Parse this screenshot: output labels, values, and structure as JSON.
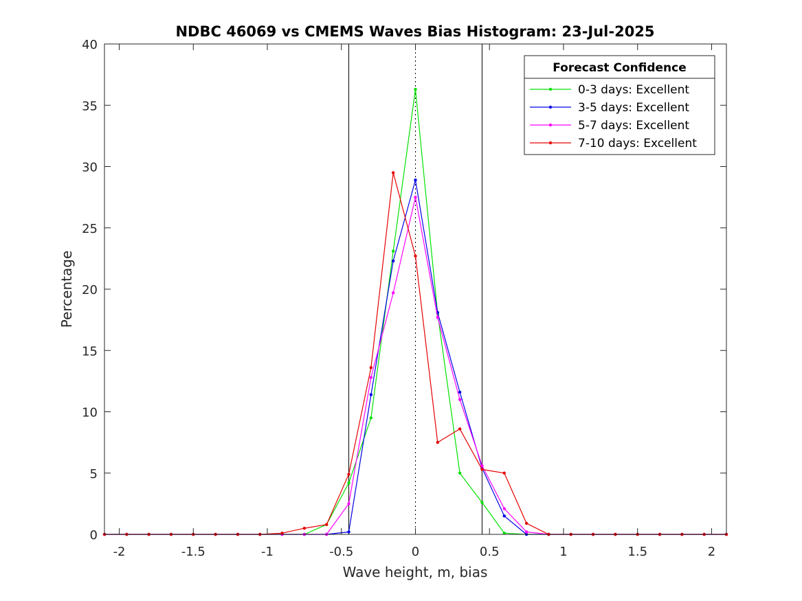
{
  "chart_data": {
    "type": "line",
    "title": "NDBC 46069 vs CMEMS Waves Bias Histogram: 23-Jul-2025",
    "xlabel": "Wave height, m, bias",
    "ylabel": "Percentage",
    "xlim": [
      -2.1,
      2.1
    ],
    "ylim": [
      0,
      40
    ],
    "xticks": [
      -2,
      -1.5,
      -1,
      -0.5,
      0,
      0.5,
      1,
      1.5,
      2
    ],
    "xtick_labels": [
      "-2",
      "-1.5",
      "-1",
      "-0.5",
      "0",
      "0.5",
      "1",
      "1.5",
      "2"
    ],
    "yticks": [
      0,
      5,
      10,
      15,
      20,
      25,
      30,
      35,
      40
    ],
    "ytick_labels": [
      "0",
      "5",
      "10",
      "15",
      "20",
      "25",
      "30",
      "35",
      "40"
    ],
    "vertical_lines": [
      {
        "x": -0.45,
        "style": "solid",
        "color": "#000000"
      },
      {
        "x": 0.45,
        "style": "solid",
        "color": "#000000"
      },
      {
        "x": 0,
        "style": "dotted",
        "color": "#000000"
      }
    ],
    "legend": {
      "title": "Forecast Confidence",
      "position": "top-right"
    },
    "x": [
      -2.1,
      -1.95,
      -1.8,
      -1.65,
      -1.5,
      -1.35,
      -1.2,
      -1.05,
      -0.9,
      -0.75,
      -0.6,
      -0.45,
      -0.3,
      -0.15,
      0,
      0.15,
      0.3,
      0.45,
      0.6,
      0.75,
      0.9,
      1.05,
      1.2,
      1.35,
      1.5,
      1.65,
      1.8,
      1.95,
      2.1
    ],
    "series": [
      {
        "name": "0-3 days: Excellent",
        "color": "#00e000",
        "values": [
          0,
          0,
          0,
          0,
          0,
          0,
          0,
          0,
          0,
          0,
          0.8,
          4.2,
          9.5,
          23.1,
          36.3,
          18.0,
          5.0,
          2.6,
          0.1,
          0,
          0,
          0,
          0,
          0,
          0,
          0,
          0,
          0,
          0
        ]
      },
      {
        "name": "3-5 days: Excellent",
        "color": "#0000e6",
        "values": [
          0,
          0,
          0,
          0,
          0,
          0,
          0,
          0,
          0,
          0,
          0,
          0.2,
          11.4,
          22.3,
          28.9,
          18.1,
          11.6,
          5.4,
          1.5,
          0,
          0,
          0,
          0,
          0,
          0,
          0,
          0,
          0,
          0
        ]
      },
      {
        "name": "5-7 days: Excellent",
        "color": "#ff00ff",
        "values": [
          0,
          0,
          0,
          0,
          0,
          0,
          0,
          0,
          0,
          0,
          0,
          2.5,
          12.8,
          19.7,
          27.5,
          17.7,
          11.0,
          5.6,
          2.1,
          0.2,
          0,
          0,
          0,
          0,
          0,
          0,
          0,
          0,
          0
        ]
      },
      {
        "name": "7-10 days: Excellent",
        "color": "#e60000",
        "values": [
          0,
          0,
          0,
          0,
          0,
          0,
          0,
          0,
          0.1,
          0.5,
          0.8,
          4.9,
          13.6,
          29.5,
          22.7,
          7.5,
          8.6,
          5.3,
          5.0,
          0.9,
          0,
          0,
          0,
          0,
          0,
          0,
          0,
          0,
          0
        ]
      }
    ]
  }
}
